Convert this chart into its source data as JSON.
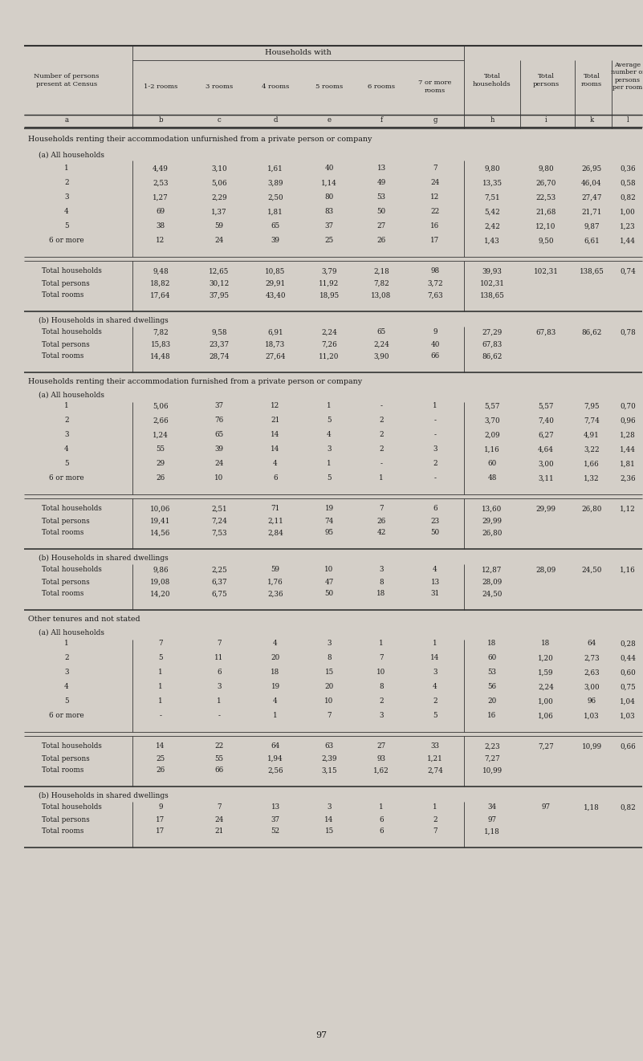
{
  "bg_color": "#d4cfc8",
  "page_number": "97",
  "col_headers": {
    "col_a": "Number of persons\npresent at Census",
    "households_with": "Households with",
    "sub_cols": [
      "1-2 rooms",
      "3 rooms",
      "4 rooms",
      "5 rooms",
      "6 rooms",
      "7 or more\nrooms"
    ],
    "sub_labels": [
      "b",
      "c",
      "d",
      "e",
      "f",
      "g"
    ],
    "col_a_label": "a",
    "total_hh": "Total\nhouseholds",
    "total_pers": "Total\npersons",
    "total_rooms": "Total\nrooms",
    "avg": "Average\nnumber of\npersons\nper room",
    "right_labels": [
      "h",
      "i",
      "k",
      "l"
    ]
  },
  "sections": [
    {
      "title": "Households renting their accommodation unfurnished from a private person or company",
      "subsections": [
        {
          "label": "(a) All households",
          "rows": [
            [
              "1",
              "4,49",
              "3,10",
              "1,61",
              "40",
              "13",
              "7",
              "9,80",
              "9,80",
              "26,95",
              "0,36"
            ],
            [
              "2",
              "2,53",
              "5,06",
              "3,89",
              "1,14",
              "49",
              "24",
              "13,35",
              "26,70",
              "46,04",
              "0,58"
            ],
            [
              "3",
              "1,27",
              "2,29",
              "2,50",
              "80",
              "53",
              "12",
              "7,51",
              "22,53",
              "27,47",
              "0,82"
            ],
            [
              "4",
              "69",
              "1,37",
              "1,81",
              "83",
              "50",
              "22",
              "5,42",
              "21,68",
              "21,71",
              "1,00"
            ],
            [
              "5",
              "38",
              "59",
              "65",
              "37",
              "27",
              "16",
              "2,42",
              "12,10",
              "9,87",
              "1,23"
            ],
            [
              "6 or more",
              "12",
              "24",
              "39",
              "25",
              "26",
              "17",
              "1,43",
              "9,50",
              "6,61",
              "1,44"
            ]
          ],
          "totals": [
            [
              "Total households",
              "9,48",
              "12,65",
              "10,85",
              "3,79",
              "2,18",
              "98",
              "39,93",
              "102,31",
              "138,65",
              "0,74"
            ],
            [
              "Total persons",
              "18,82",
              "30,12",
              "29,91",
              "11,92",
              "7,82",
              "3,72",
              "102,31",
              "",
              "",
              ""
            ],
            [
              "Total rooms",
              "17,64",
              "37,95",
              "43,40",
              "18,95",
              "13,08",
              "7,63",
              "138,65",
              "",
              "",
              ""
            ]
          ]
        },
        {
          "label": "(b) Households in shared dwellings",
          "rows": [],
          "totals": [
            [
              "Total households",
              "7,82",
              "9,58",
              "6,91",
              "2,24",
              "65",
              "9",
              "27,29",
              "67,83",
              "86,62",
              "0,78"
            ],
            [
              "Total persons",
              "15,83",
              "23,37",
              "18,73",
              "7,26",
              "2,24",
              "40",
              "67,83",
              "",
              "",
              ""
            ],
            [
              "Total rooms",
              "14,48",
              "28,74",
              "27,64",
              "11,20",
              "3,90",
              "66",
              "86,62",
              "",
              "",
              ""
            ]
          ]
        }
      ]
    },
    {
      "title": "Households renting their accommodation furnished from a private person or company",
      "subsections": [
        {
          "label": "(a) All households",
          "rows": [
            [
              "1",
              "5,06",
              "37",
              "12",
              "1",
              "-",
              "1",
              "5,57",
              "5,57",
              "7,95",
              "0,70"
            ],
            [
              "2",
              "2,66",
              "76",
              "21",
              "5",
              "2",
              "-",
              "3,70",
              "7,40",
              "7,74",
              "0,96"
            ],
            [
              "3",
              "1,24",
              "65",
              "14",
              "4",
              "2",
              "-",
              "2,09",
              "6,27",
              "4,91",
              "1,28"
            ],
            [
              "4",
              "55",
              "39",
              "14",
              "3",
              "2",
              "3",
              "1,16",
              "4,64",
              "3,22",
              "1,44"
            ],
            [
              "5",
              "29",
              "24",
              "4",
              "1",
              "-",
              "2",
              "60",
              "3,00",
              "1,66",
              "1,81"
            ],
            [
              "6 or more",
              "26",
              "10",
              "6",
              "5",
              "1",
              "-",
              "48",
              "3,11",
              "1,32",
              "2,36"
            ]
          ],
          "totals": [
            [
              "Total households",
              "10,06",
              "2,51",
              "71",
              "19",
              "7",
              "6",
              "13,60",
              "29,99",
              "26,80",
              "1,12"
            ],
            [
              "Total persons",
              "19,41",
              "7,24",
              "2,11",
              "74",
              "26",
              "23",
              "29,99",
              "",
              "",
              ""
            ],
            [
              "Total rooms",
              "14,56",
              "7,53",
              "2,84",
              "95",
              "42",
              "50",
              "26,80",
              "",
              "",
              ""
            ]
          ]
        },
        {
          "label": "(b) Households in shared dwellings",
          "rows": [],
          "totals": [
            [
              "Total households",
              "9,86",
              "2,25",
              "59",
              "10",
              "3",
              "4",
              "12,87",
              "28,09",
              "24,50",
              "1,16"
            ],
            [
              "Total persons",
              "19,08",
              "6,37",
              "1,76",
              "47",
              "8",
              "13",
              "28,09",
              "",
              "",
              ""
            ],
            [
              "Total rooms",
              "14,20",
              "6,75",
              "2,36",
              "50",
              "18",
              "31",
              "24,50",
              "",
              "",
              ""
            ]
          ]
        }
      ]
    },
    {
      "title": "Other tenures and not stated",
      "subsections": [
        {
          "label": "(a) All households",
          "rows": [
            [
              "1",
              "7",
              "7",
              "4",
              "3",
              "1",
              "1",
              "18",
              "18",
              "64",
              "0,28"
            ],
            [
              "2",
              "5",
              "11",
              "20",
              "8",
              "7",
              "14",
              "60",
              "1,20",
              "2,73",
              "0,44"
            ],
            [
              "3",
              "1",
              "6",
              "18",
              "15",
              "10",
              "3",
              "53",
              "1,59",
              "2,63",
              "0,60"
            ],
            [
              "4",
              "1",
              "3",
              "19",
              "20",
              "8",
              "4",
              "56",
              "2,24",
              "3,00",
              "0,75"
            ],
            [
              "5",
              "1",
              "1",
              "4",
              "10",
              "2",
              "2",
              "20",
              "1,00",
              "96",
              "1,04"
            ],
            [
              "6 or more",
              "-",
              "-",
              "1",
              "7",
              "3",
              "5",
              "16",
              "1,06",
              "1,03",
              "1,03"
            ]
          ],
          "totals": [
            [
              "Total households",
              "14",
              "22",
              "64",
              "63",
              "27",
              "33",
              "2,23",
              "7,27",
              "10,99",
              "0,66"
            ],
            [
              "Total persons",
              "25",
              "55",
              "1,94",
              "2,39",
              "93",
              "1,21",
              "7,27",
              "",
              "",
              ""
            ],
            [
              "Total rooms",
              "26",
              "66",
              "2,56",
              "3,15",
              "1,62",
              "2,74",
              "10,99",
              "",
              "",
              ""
            ]
          ]
        },
        {
          "label": "(b) Households in shared dwellings",
          "rows": [],
          "totals": [
            [
              "Total households",
              "9",
              "7",
              "13",
              "3",
              "1",
              "1",
              "34",
              "97",
              "1,18",
              "0,82"
            ],
            [
              "Total persons",
              "17",
              "24",
              "37",
              "14",
              "6",
              "2",
              "97",
              "",
              "",
              ""
            ],
            [
              "Total rooms",
              "17",
              "21",
              "52",
              "15",
              "6",
              "7",
              "1,18",
              "",
              "",
              ""
            ]
          ]
        }
      ]
    }
  ]
}
